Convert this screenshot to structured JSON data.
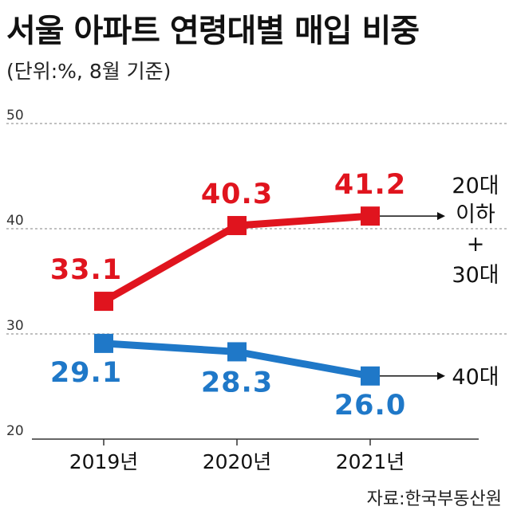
{
  "title": "서울 아파트 연령대별 매입 비중",
  "subtitle": "(단위:%, 8월 기준)",
  "source": "자료:한국부동산원",
  "colors": {
    "red": "#e0141e",
    "blue": "#1f78c8",
    "grid": "#9a9a9a",
    "axis": "#333333"
  },
  "chart_data": {
    "type": "line",
    "categories": [
      "2019년",
      "2020년",
      "2021년"
    ],
    "ylim": [
      20,
      50
    ],
    "yticks": [
      "20",
      "30",
      "40",
      "50"
    ],
    "grid": true,
    "series": [
      {
        "name_lines": [
          "20대",
          "이하",
          "+",
          "30대"
        ],
        "values": [
          33.1,
          40.3,
          41.2
        ],
        "labels": [
          "33.1",
          "40.3",
          "41.2"
        ],
        "color": "#e0141e"
      },
      {
        "name_lines": [
          "40대"
        ],
        "values": [
          29.1,
          28.3,
          26.0
        ],
        "labels": [
          "29.1",
          "28.3",
          "26.0"
        ],
        "color": "#1f78c8"
      }
    ]
  }
}
